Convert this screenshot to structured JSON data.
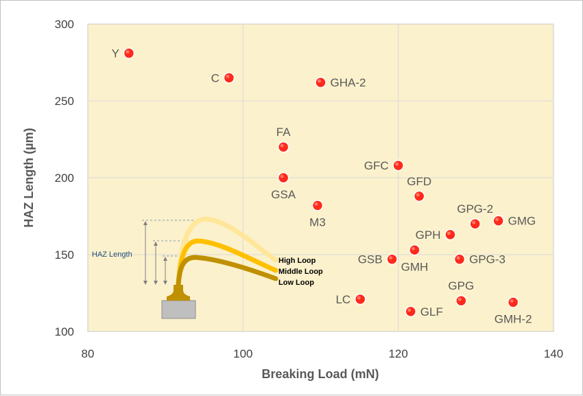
{
  "chart_data": {
    "type": "scatter",
    "title": "",
    "xlabel": "Breaking Load (mN)",
    "ylabel": "HAZ Length (µm)",
    "xlim": [
      80,
      140
    ],
    "ylim": [
      100,
      300
    ],
    "xticks": [
      80,
      100,
      120,
      140
    ],
    "yticks": [
      100,
      150,
      200,
      250,
      300
    ],
    "grid": true,
    "colors": {
      "plot_bg": "#fbf1cc",
      "marker": "#ff2a1a",
      "grid": "#d9d9d9"
    },
    "points": [
      {
        "label": "Y",
        "x": 85.3,
        "y": 281
      },
      {
        "label": "C",
        "x": 98.2,
        "y": 265
      },
      {
        "label": "GHA-2",
        "x": 110.0,
        "y": 262
      },
      {
        "label": "FA",
        "x": 105.2,
        "y": 220
      },
      {
        "label": "GSA",
        "x": 105.2,
        "y": 200
      },
      {
        "label": "M3",
        "x": 109.6,
        "y": 182
      },
      {
        "label": "GFC",
        "x": 120.0,
        "y": 208
      },
      {
        "label": "GFD",
        "x": 122.7,
        "y": 188
      },
      {
        "label": "GPG-2",
        "x": 129.9,
        "y": 170
      },
      {
        "label": "GMG",
        "x": 132.9,
        "y": 172
      },
      {
        "label": "GPH",
        "x": 126.7,
        "y": 163
      },
      {
        "label": "GSB",
        "x": 119.2,
        "y": 147
      },
      {
        "label": "GMH",
        "x": 122.1,
        "y": 153
      },
      {
        "label": "GPG-3",
        "x": 127.9,
        "y": 147
      },
      {
        "label": "LC",
        "x": 115.1,
        "y": 121
      },
      {
        "label": "GPG",
        "x": 128.1,
        "y": 120
      },
      {
        "label": "GLF",
        "x": 121.6,
        "y": 113
      },
      {
        "label": "GMH-2",
        "x": 134.8,
        "y": 119
      }
    ]
  },
  "inset": {
    "haz_label": "HAZ Length",
    "loops": [
      {
        "name": "High Loop",
        "color": "#ffe699"
      },
      {
        "name": "Middle Loop",
        "color": "#ffc000"
      },
      {
        "name": "Low Loop",
        "color": "#bf9000"
      }
    ]
  }
}
